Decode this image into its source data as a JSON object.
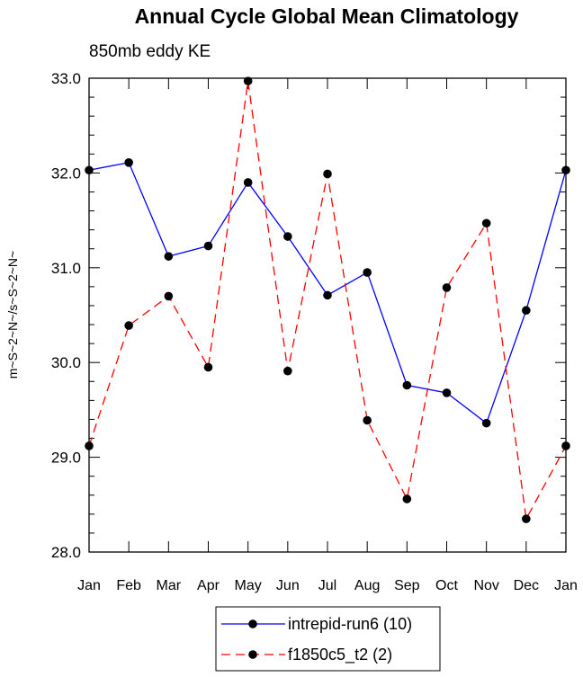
{
  "chart_data": {
    "type": "line",
    "title": "Annual Cycle Global Mean Climatology",
    "subtitle": "850mb eddy KE",
    "ylabel": "m~S~2~N~/s~S~2~N~",
    "xlabel": "",
    "categories": [
      "Jan",
      "Feb",
      "Mar",
      "Apr",
      "May",
      "Jun",
      "Jul",
      "Aug",
      "Sep",
      "Oct",
      "Nov",
      "Dec",
      "Jan"
    ],
    "yticks": [
      "28.0",
      "29.0",
      "30.0",
      "31.0",
      "32.0",
      "33.0"
    ],
    "ylim": [
      28.0,
      33.0
    ],
    "grid": false,
    "legend_position": "bottom-center",
    "series": [
      {
        "name": "intrepid-run6 (10)",
        "color": "#0000ff",
        "line_style": "solid",
        "values": [
          32.03,
          32.11,
          31.12,
          31.23,
          31.9,
          31.33,
          30.71,
          30.95,
          29.76,
          29.68,
          29.36,
          30.55,
          32.03
        ]
      },
      {
        "name": "f1850c5_t2 (2)",
        "color": "#ff0000",
        "line_style": "dashed",
        "values": [
          29.12,
          30.39,
          30.7,
          29.95,
          32.97,
          29.91,
          31.99,
          29.39,
          28.56,
          30.79,
          31.47,
          28.35,
          29.12
        ]
      }
    ]
  }
}
